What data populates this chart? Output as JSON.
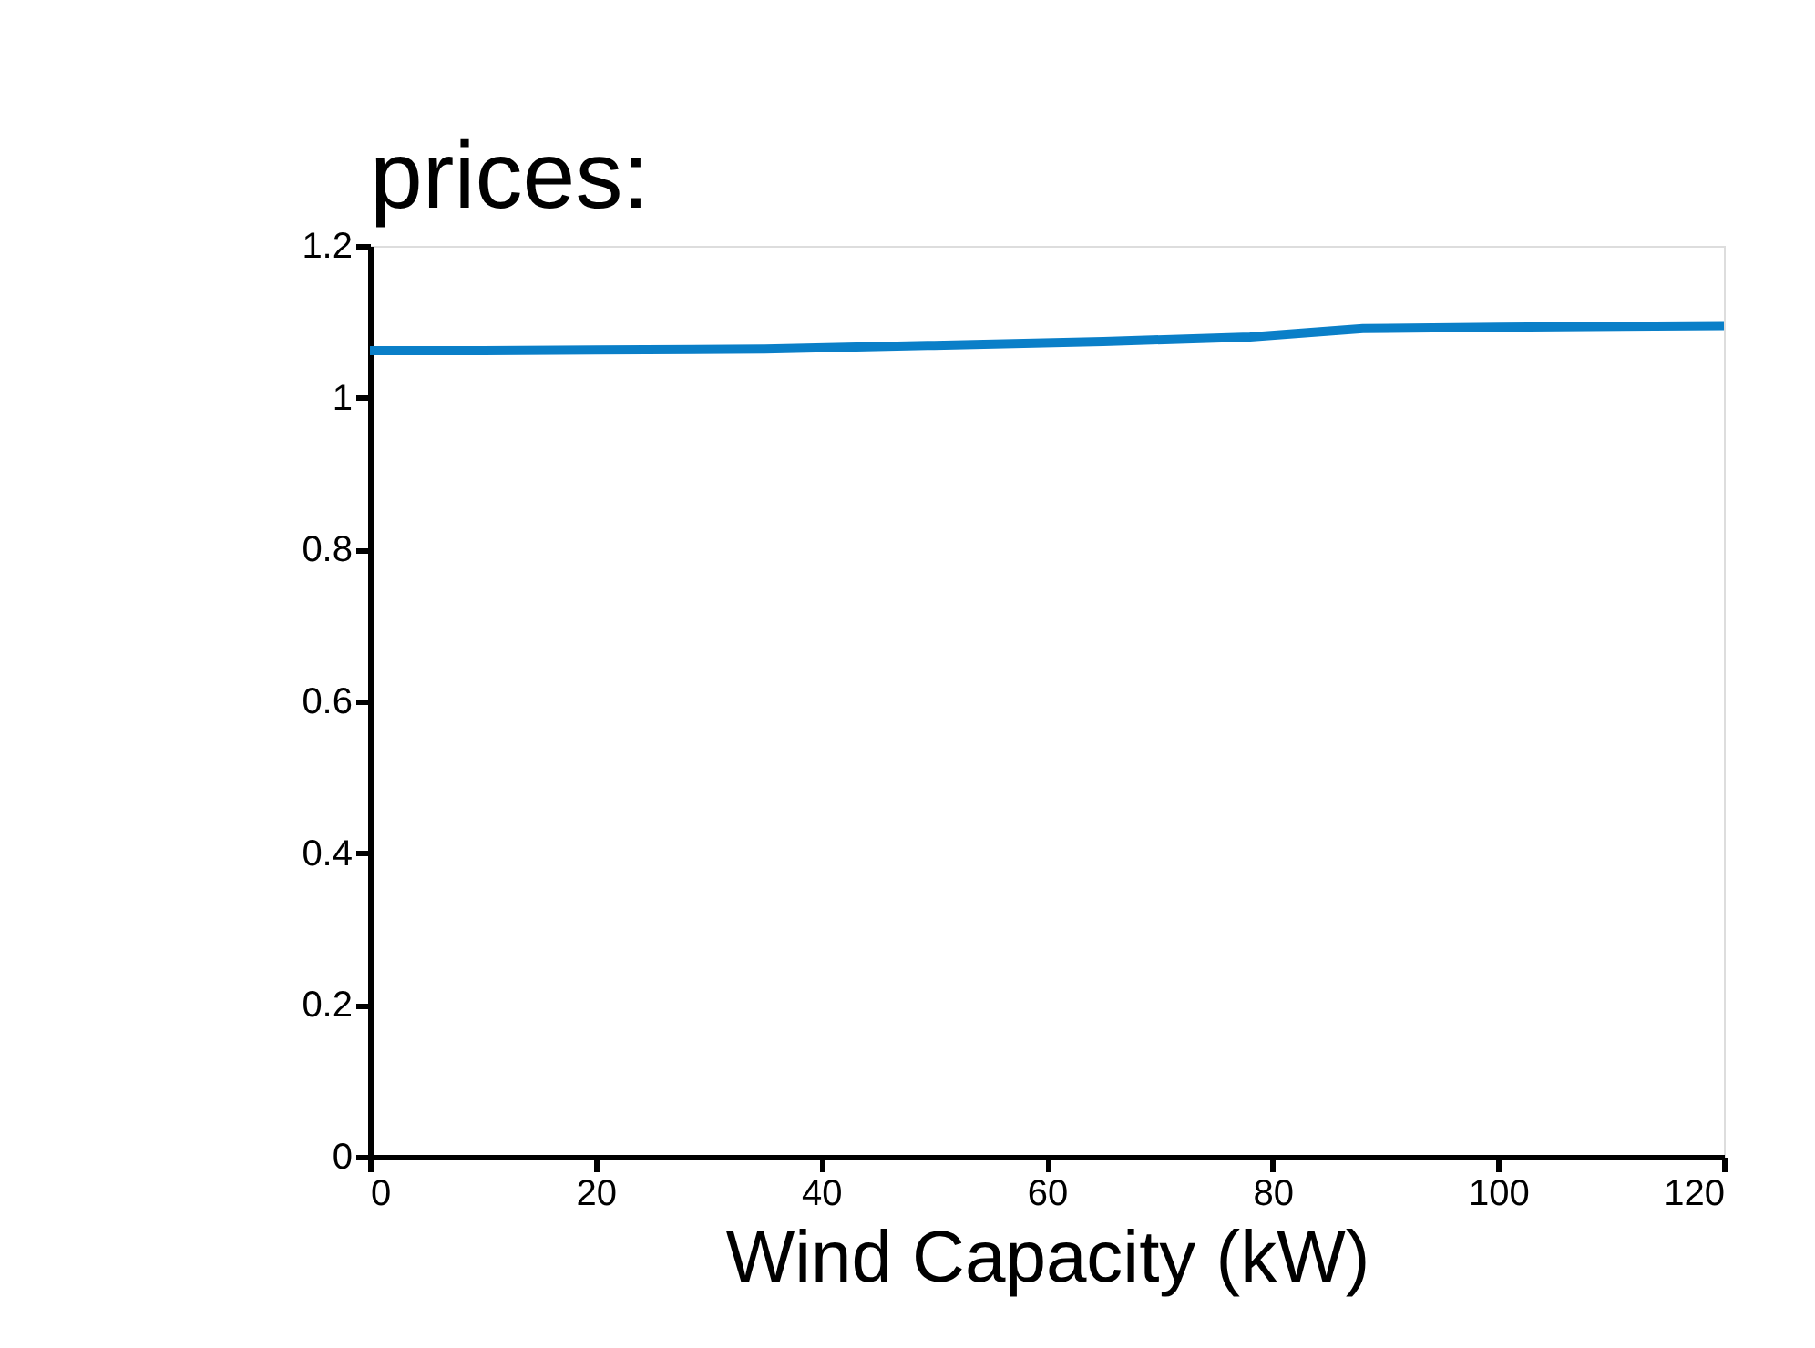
{
  "chart_data": {
    "type": "line",
    "xlabel": "Wind Capacity (kW)",
    "annotations": [
      "prices:"
    ],
    "x": [
      0,
      10,
      20,
      35,
      50,
      65,
      78,
      88,
      100,
      120
    ],
    "series": [
      {
        "color": "#0a7fc8",
        "values": [
          1.062,
          1.062,
          1.063,
          1.064,
          1.069,
          1.074,
          1.08,
          1.091,
          1.093,
          1.095
        ]
      }
    ],
    "xlim": [
      0,
      120
    ],
    "xticks": [
      0,
      20,
      40,
      60,
      80,
      100,
      120
    ],
    "ylim": [
      0,
      1.2
    ],
    "yticks": [
      0,
      0.2,
      0.4,
      0.6,
      0.8,
      1,
      1.2
    ],
    "grid": false,
    "marker": "none",
    "line_style": "solid"
  }
}
